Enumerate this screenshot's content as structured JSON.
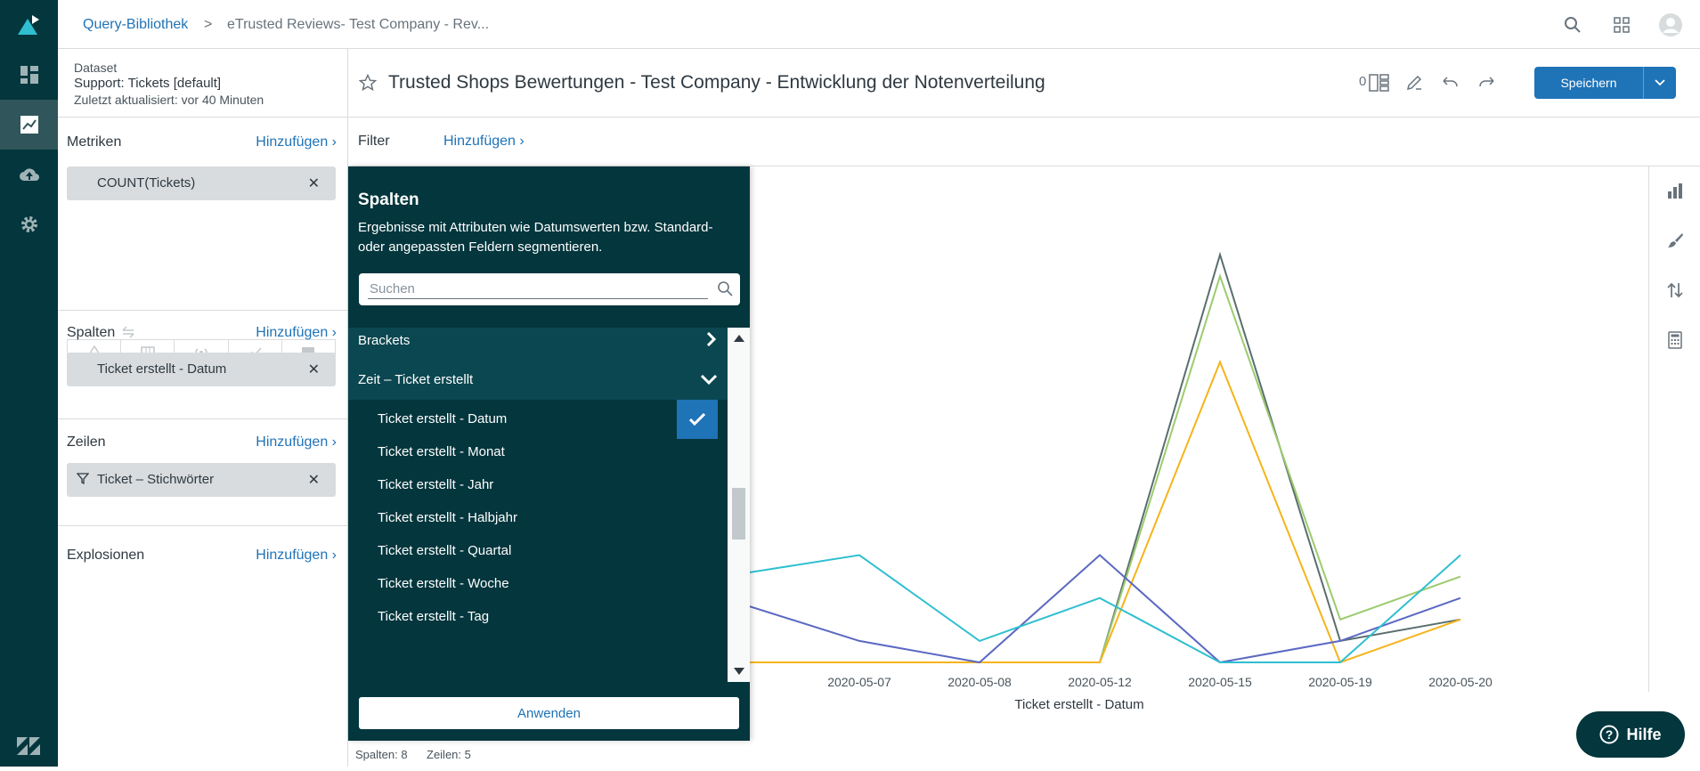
{
  "breadcrumb": {
    "library": "Query-Bibliothek",
    "separator": ">",
    "current": "eTrusted Reviews- Test Company - Rev..."
  },
  "dataset": {
    "label": "Dataset",
    "name": "Support: Tickets [default]",
    "updated": "Zuletzt aktualisiert: vor 40 Minuten"
  },
  "sections": {
    "metrics": {
      "title": "Metriken",
      "add": "Hinzufügen ›",
      "items": [
        "COUNT(Tickets)"
      ]
    },
    "columns": {
      "title": "Spalten",
      "add": "Hinzufügen ›",
      "items": [
        "Ticket erstellt - Datum"
      ]
    },
    "rows": {
      "title": "Zeilen",
      "add": "Hinzufügen ›",
      "items": [
        "Ticket – Stichwörter"
      ]
    },
    "explosions": {
      "title": "Explosionen",
      "add": "Hinzufügen ›"
    }
  },
  "query": {
    "title": "Trusted Shops Bewertungen - Test Company - Entwicklung der Notenverteilung",
    "save_label": "Speichern",
    "counter": "0"
  },
  "filter": {
    "label": "Filter",
    "add": "Hinzufügen ›"
  },
  "picker": {
    "title": "Spalten",
    "description": "Ergebnisse mit Attributen wie Datumswerten bzw. Standard- oder angepassten Feldern segmentieren.",
    "search_placeholder": "Suchen",
    "groups": [
      {
        "label": "Brackets",
        "expanded": false
      },
      {
        "label": "Zeit – Ticket erstellt",
        "expanded": true
      }
    ],
    "items": [
      {
        "label": "Ticket erstellt - Datum",
        "selected": true
      },
      {
        "label": "Ticket erstellt - Monat",
        "selected": false
      },
      {
        "label": "Ticket erstellt - Jahr",
        "selected": false
      },
      {
        "label": "Ticket erstellt - Halbjahr",
        "selected": false
      },
      {
        "label": "Ticket erstellt - Quartal",
        "selected": false
      },
      {
        "label": "Ticket erstellt - Woche",
        "selected": false
      },
      {
        "label": "Ticket erstellt - Tag",
        "selected": false
      }
    ],
    "apply_label": "Anwenden"
  },
  "status": {
    "columns": "Spalten: 8",
    "rows": "Zeilen: 5"
  },
  "help_label": "Hilfe",
  "chart_data": {
    "type": "line",
    "categories": [
      "2020-05-07",
      "2020-05-08",
      "2020-05-12",
      "2020-05-15",
      "2020-05-19",
      "2020-05-20"
    ],
    "xlabel": "Ticket erstellt - Datum",
    "ylim": [
      0,
      20
    ],
    "series": [
      {
        "color": "#5a6e6e",
        "values": [
          0,
          0,
          0,
          19,
          1,
          2
        ]
      },
      {
        "color": "#9ccb6e",
        "values": [
          0,
          0,
          0,
          18,
          2,
          4
        ]
      },
      {
        "color": "#f5b41c",
        "values": [
          0,
          0,
          0,
          14,
          0,
          2
        ]
      },
      {
        "color": "#5b69c2",
        "values": [
          1,
          0,
          5,
          0,
          1,
          3
        ]
      },
      {
        "color": "#2fbfd0",
        "values": [
          5,
          1,
          3,
          0,
          0,
          5
        ]
      }
    ],
    "colors": {
      "accent": "#1f73b7",
      "rail": "#03363d"
    }
  }
}
